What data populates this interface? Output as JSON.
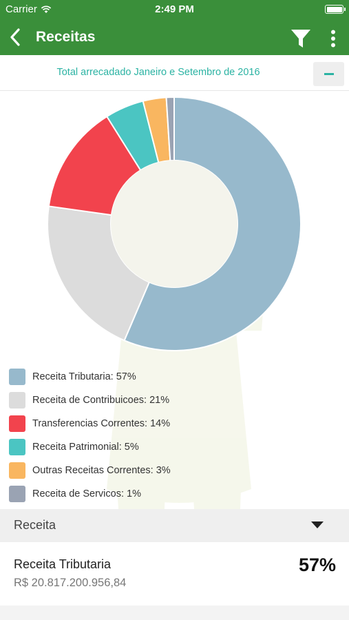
{
  "status": {
    "carrier": "Carrier",
    "time": "2:49 PM"
  },
  "navbar": {
    "title": "Receitas",
    "icons": [
      "back-chevron-icon",
      "filter-funnel-icon",
      "more-vertical-icon"
    ]
  },
  "subheader": {
    "text": "Total arrecadado Janeiro e Setembro de 2016",
    "toggle_icon": "minus-icon"
  },
  "colors": {
    "nav_green": "#3a8f3a",
    "accent_teal": "#2bb3a3"
  },
  "chart_data": {
    "type": "pie",
    "style": "donut",
    "categories": [
      "Receita Tributaria",
      "Receita de Contribuicoes",
      "Transferencias Correntes",
      "Receita Patrimonial",
      "Outras Receitas Correntes",
      "Receita de Servicos"
    ],
    "values": [
      57,
      21,
      14,
      5,
      3,
      1
    ],
    "colors": [
      "#97b9cc",
      "#dcdcdc",
      "#f2434d",
      "#4bc5c2",
      "#f9b660",
      "#9aa3b3"
    ],
    "legend_position": "bottom-left"
  },
  "legend": [
    {
      "label": "Receita Tributaria: 57%",
      "color": "#97b9cc"
    },
    {
      "label": "Receita de Contribuicoes: 21%",
      "color": "#dcdcdc"
    },
    {
      "label": "Transferencias Correntes: 14%",
      "color": "#f2434d"
    },
    {
      "label": "Receita Patrimonial: 5%",
      "color": "#4bc5c2"
    },
    {
      "label": "Outras Receitas Correntes: 3%",
      "color": "#f9b660"
    },
    {
      "label": "Receita de Servicos: 1%",
      "color": "#9aa3b3"
    }
  ],
  "section": {
    "title": "Receita",
    "dropdown_icon": "caret-down-icon"
  },
  "items": [
    {
      "name": "Receita Tributaria",
      "amount": "R$ 20.817.200.956,84",
      "percent": "57%"
    }
  ]
}
